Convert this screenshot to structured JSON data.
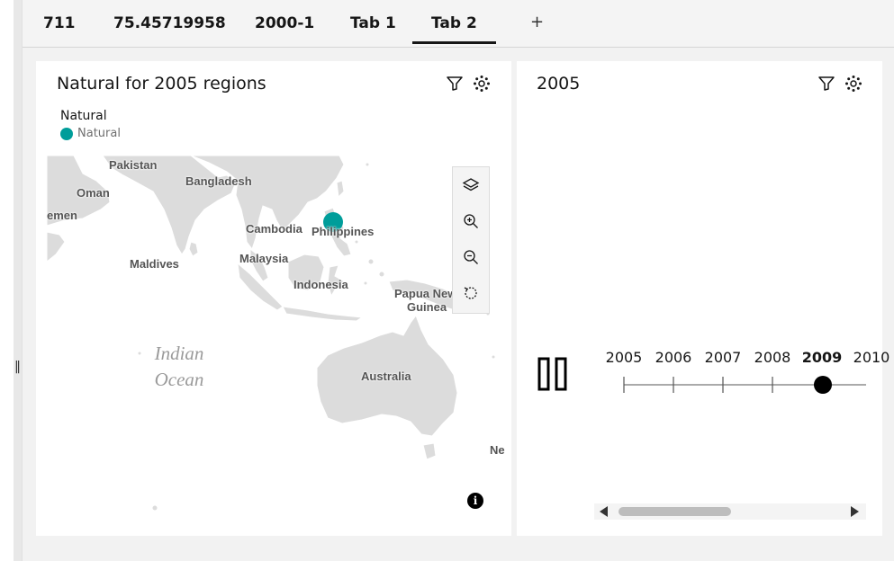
{
  "tabs": [
    {
      "label": "711"
    },
    {
      "label": "75.45719958"
    },
    {
      "label": "2000-1"
    },
    {
      "label": "Tab 1"
    },
    {
      "label": "Tab 2",
      "active": true
    }
  ],
  "add_tab_label": "+",
  "map_panel": {
    "title": "Natural for 2005 regions",
    "legend": {
      "title": "Natural",
      "items": [
        {
          "label": "Natural",
          "color": "#009d9a"
        }
      ]
    },
    "country_labels": [
      "Pakistan",
      "Bangladesh",
      "Oman",
      "emen",
      "Cambodia",
      "Philippines",
      "Maldives",
      "Malaysia",
      "Indonesia",
      "Papua New",
      "Guinea",
      "Australia",
      "Ne"
    ],
    "ocean_labels": [
      "Indian",
      "Ocean"
    ],
    "controls": [
      "layers-icon",
      "zoom-in-icon",
      "zoom-out-icon",
      "reset-view-icon"
    ],
    "info_glyph": "i",
    "colors": {
      "land": "#dcdcdc",
      "marker": "#009d9a"
    }
  },
  "timeline_panel": {
    "title": "2005",
    "years": [
      "2005",
      "2006",
      "2007",
      "2008",
      "2009",
      "2010"
    ],
    "selected_year": "2009",
    "play_state": "paused"
  }
}
